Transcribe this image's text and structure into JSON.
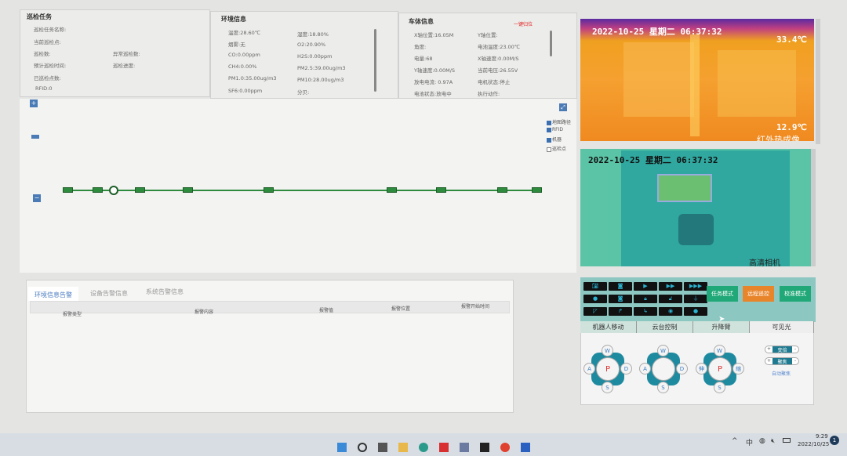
{
  "task": {
    "title": "巡检任务",
    "name": "巡检任务名称:",
    "current_point": "当前巡检点:",
    "count": "巡检数:",
    "abnormal_count": "异常巡检数:",
    "est_time": "预计巡检时间:",
    "progress": "巡检进度:",
    "done_points": "已巡检点数:",
    "rfid": "RFID:0"
  },
  "env": {
    "title": "环境信息",
    "temp": "温度:28.60℃",
    "humidity": "湿度:18.80%",
    "smoke": "烟雾:无",
    "o2": "O2:20.90%",
    "co": "CO:0.00ppm",
    "h2s": "H2S:0.00ppm",
    "ch4": "CH4:0.00%",
    "pm25": "PM2.5:39.00ug/m3",
    "pm10a": "PM1.0:35.00ug/m3",
    "pm10": "PM10:28.00ug/m3",
    "sf6": "SF6:0.00ppm",
    "db": "分贝:"
  },
  "body": {
    "title": "车体信息",
    "reset": "一键归位",
    "x_pos": "X轴位置:16.05M",
    "y_pos": "Y轴位置:",
    "angle": "角度:",
    "bat_temp": "电池温度:23.00℃",
    "power": "电量:68",
    "x_speed": "X轴速度:0.00M/S",
    "y_speed": "Y轴速度:0.00M/S",
    "voltage": "当前电压:26.55V",
    "current": "放电电流: 0.97A",
    "motor": "电机状态:停止",
    "bat_state": "电池状态:放电中",
    "action": "执行动作:"
  },
  "map": {
    "zoom_in": "+",
    "zoom_out": "−",
    "layers": [
      {
        "label": "地图路径",
        "checked": true
      },
      {
        "label": "RFID",
        "checked": true
      },
      {
        "label": "机器",
        "checked": true
      },
      {
        "label": "巡检点",
        "checked": false
      }
    ]
  },
  "alarms": {
    "tabs": [
      "环境信息告警",
      "设备告警信息",
      "系统告警信息"
    ],
    "active_tab": 0,
    "columns": [
      "报警类型",
      "报警内容",
      "报警值",
      "报警位置",
      "报警开始时间"
    ],
    "rows": []
  },
  "cameras": {
    "thermal": {
      "timestamp": "2022-10-25  星期二  06:37:32",
      "max_temp": "33.4℃",
      "min_temp": "12.9℃",
      "label": "红外热成像"
    },
    "visible": {
      "timestamp": "2022-10-25 星期二 06:37:32",
      "label": "高清相机"
    }
  },
  "controls": {
    "icons": [
      "camera-icon",
      "record-icon",
      "play-icon",
      "fast-forward-icon",
      "faster-forward-icon",
      "mic-icon",
      "video-icon",
      "lock-icon",
      "unlock-icon",
      "plug-icon",
      "wiper-icon",
      "arm-up-icon",
      "arm-down-icon",
      "eye-icon",
      "light-icon"
    ],
    "modes": [
      {
        "label": "任务模式",
        "color": "#20a878"
      },
      {
        "label": "远程遥控",
        "color": "#e8842a"
      },
      {
        "label": "校准模式",
        "color": "#20a878"
      }
    ],
    "sections": [
      "机器人移动",
      "云台控制",
      "升降臂",
      "可见光"
    ],
    "robot_pad": {
      "up": "W",
      "left": "A",
      "center": "P",
      "right": "D",
      "down": "S"
    },
    "ptz_pad": {
      "up": "W",
      "left": "A",
      "right": "D",
      "down": "S"
    },
    "arm_pad": {
      "up": "W",
      "left": "伸",
      "center": "P",
      "right": "缩",
      "down": "S"
    },
    "zoom_label": "变倍",
    "focus_label": "聚焦",
    "plus": "+",
    "minus": "-",
    "auto_focus": "自动聚焦"
  },
  "taskbar": {
    "ime": "中",
    "time": "9:29",
    "date": "2022/10/25",
    "notifications": "1"
  }
}
